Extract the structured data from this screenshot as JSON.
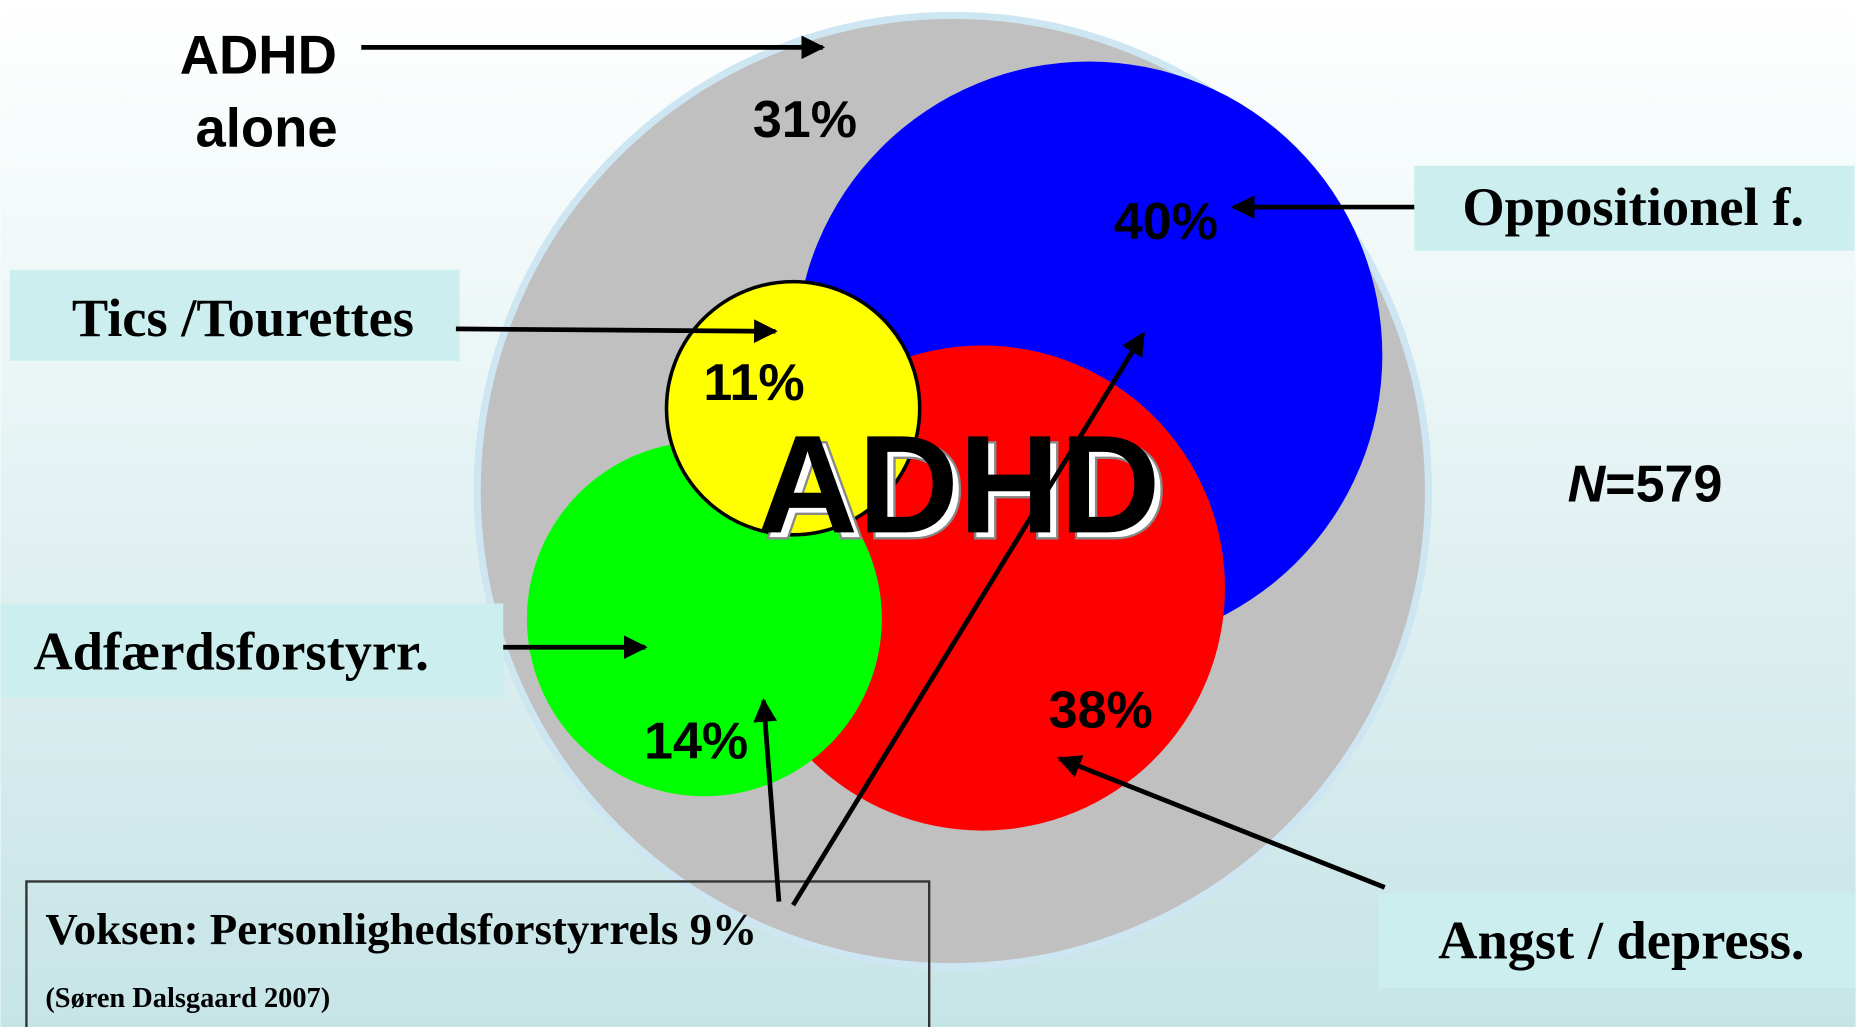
{
  "diagram": {
    "center_label": "ADHD",
    "adhd_alone": {
      "lines": [
        "ADHD",
        "alone"
      ],
      "percent": "31%"
    },
    "oppositional": {
      "label": "Oppositionel f.",
      "percent": "40%"
    },
    "tics": {
      "label": "Tics /Tourettes",
      "percent": "11%"
    },
    "conduct": {
      "label": "Adfærdsforstyrr.",
      "percent": "14%"
    },
    "anxiety": {
      "label": "Angst / depress.",
      "percent": "38%"
    },
    "sample": {
      "symbol": "N",
      "value": "=579"
    },
    "note": {
      "line": "Voksen: Personlighedsforstyrrels 9%",
      "source": "(Søren Dalsgaard 2007)"
    }
  }
}
